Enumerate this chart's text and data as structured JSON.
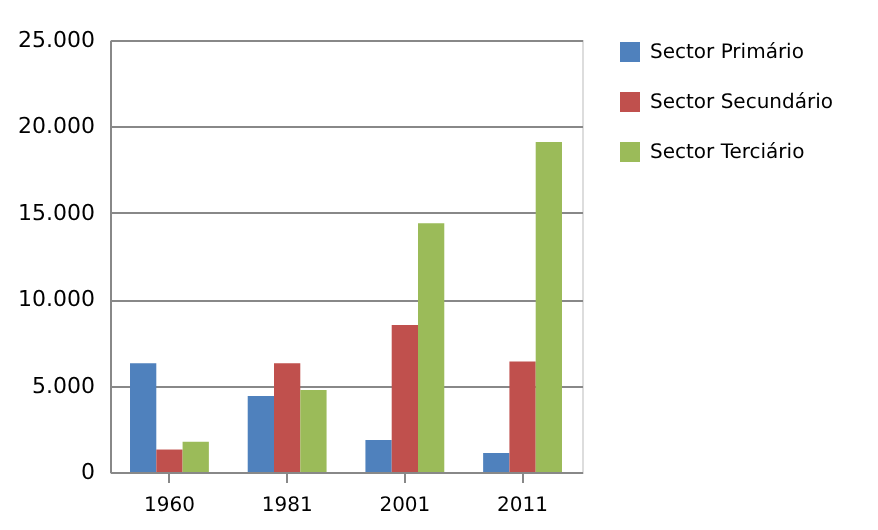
{
  "chart_data": {
    "type": "bar",
    "categories": [
      "1960",
      "1981",
      "2001",
      "2011"
    ],
    "series": [
      {
        "name": "Sector Primário",
        "color": "#4f81bd",
        "values": [
          6300,
          4400,
          1850,
          1100
        ]
      },
      {
        "name": "Sector Secundário",
        "color": "#c0504d",
        "values": [
          1300,
          6300,
          8500,
          6400
        ]
      },
      {
        "name": "Sector Terciário",
        "color": "#9bbb59",
        "values": [
          1750,
          4750,
          14400,
          19100
        ]
      }
    ],
    "ylim": [
      0,
      25000
    ],
    "yticks": [
      {
        "value": 0,
        "label": "0"
      },
      {
        "value": 5000,
        "label": "5.000"
      },
      {
        "value": 10000,
        "label": "10.000"
      },
      {
        "value": 15000,
        "label": "15.000"
      },
      {
        "value": 20000,
        "label": "20.000"
      },
      {
        "value": 25000,
        "label": "25.000"
      }
    ],
    "grid": "y",
    "legend": "right"
  }
}
